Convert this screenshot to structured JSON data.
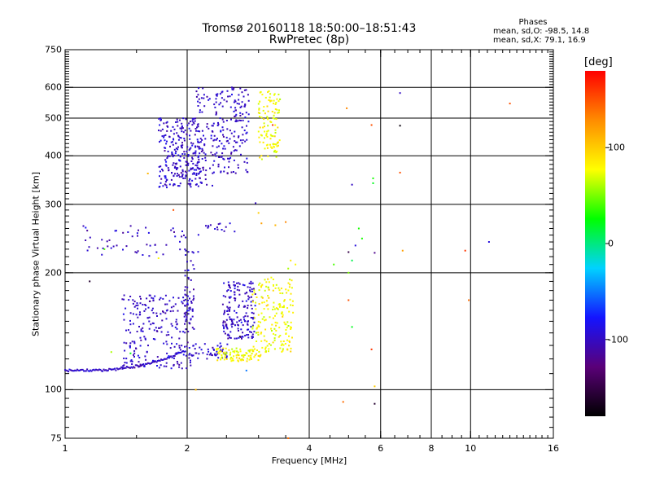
{
  "chart_data": {
    "type": "scatter",
    "title": "Tromsø 20160118 18:50:00–18:51:43",
    "subtitle": "RwPretec (8p)",
    "xlabel": "Frequency [MHz]",
    "ylabel": "Stationary phase Virtual Height [km]",
    "x_scale": "log",
    "y_scale": "log",
    "xlim": [
      1,
      16
    ],
    "ylim": [
      75,
      750
    ],
    "x_ticks": [
      1,
      2,
      4,
      6,
      8,
      10,
      16
    ],
    "x_tick_labels": [
      "1",
      "2",
      "4",
      "6",
      "8",
      "10",
      "16"
    ],
    "x_gridlines": [
      2,
      4,
      6,
      8,
      10
    ],
    "y_ticks": [
      75,
      100,
      200,
      300,
      400,
      500,
      600,
      750
    ],
    "y_tick_labels": [
      "75",
      "100",
      "200",
      "300",
      "400",
      "500",
      "600",
      "750"
    ],
    "y_gridlines": [
      100,
      200,
      300,
      400,
      500,
      600
    ],
    "grid": true,
    "colorbar": {
      "label": "[deg]",
      "range": [
        -180,
        180
      ],
      "ticks": [
        -100,
        0,
        100
      ],
      "tick_labels": [
        "-100",
        "0",
        "100"
      ],
      "colors": [
        "#000000",
        "#5a0078",
        "#1414ff",
        "#00d2ff",
        "#00ff00",
        "#ffff00",
        "#ff8c00",
        "#ff0000"
      ]
    },
    "stats": {
      "heading": "Phases",
      "line_o": "mean, sd,O: -98.5, 14.8",
      "line_x": "mean, sd,X:  79.1, 16.9"
    },
    "series": [
      {
        "mode": "O",
        "phase_mean": -98.5,
        "phase_sd": 14.8,
        "clusters": [
          {
            "fx": [
              1.0,
              1.98
            ],
            "h": [
              112,
              126
            ],
            "n": 110,
            "trace": true
          },
          {
            "fx": [
              1.38,
              2.05
            ],
            "h": [
              113,
              175
            ],
            "n": 230
          },
          {
            "fx": [
              1.97,
              2.08
            ],
            "h": [
              140,
              230
            ],
            "n": 50
          },
          {
            "fx": [
              2.02,
              2.55
            ],
            "h": [
              120,
              132
            ],
            "n": 50
          },
          {
            "fx": [
              2.45,
              2.95
            ],
            "h": [
              135,
              190
            ],
            "n": 170
          },
          {
            "fx": [
              1.08,
              2.15
            ],
            "h": [
              220,
              265
            ],
            "n": 55
          },
          {
            "fx": [
              2.2,
              2.65
            ],
            "h": [
              255,
              270
            ],
            "n": 15
          },
          {
            "fx": [
              1.7,
              2.15
            ],
            "h": [
              330,
              500
            ],
            "n": 250
          },
          {
            "fx": [
              2.1,
              2.35
            ],
            "h": [
              335,
              600
            ],
            "n": 90
          },
          {
            "fx": [
              2.35,
              2.85
            ],
            "h": [
              360,
              600
            ],
            "n": 160
          }
        ]
      },
      {
        "mode": "X",
        "phase_mean": 79.1,
        "phase_sd": 16.9,
        "clusters": [
          {
            "fx": [
              2.35,
              3.05
            ],
            "h": [
              118,
              128
            ],
            "n": 90
          },
          {
            "fx": [
              2.9,
              3.65
            ],
            "h": [
              125,
              195
            ],
            "n": 180
          },
          {
            "fx": [
              3.0,
              3.4
            ],
            "h": [
              390,
              590
            ],
            "n": 110
          }
        ]
      }
    ],
    "outliers": [
      [
        4.95,
        530,
        130
      ],
      [
        5.7,
        480,
        150
      ],
      [
        6.7,
        580,
        -100
      ],
      [
        6.7,
        478,
        -175
      ],
      [
        6.7,
        362,
        150
      ],
      [
        5.75,
        350,
        30
      ],
      [
        5.75,
        340,
        20
      ],
      [
        5.1,
        337,
        -100
      ],
      [
        5.3,
        260,
        30
      ],
      [
        5.4,
        245,
        30
      ],
      [
        5.2,
        235,
        -90
      ],
      [
        5.0,
        226,
        -150
      ],
      [
        5.1,
        215,
        10
      ],
      [
        4.6,
        210,
        40
      ],
      [
        5.8,
        225,
        -120
      ],
      [
        5.0,
        200,
        50
      ],
      [
        5.0,
        170,
        150
      ],
      [
        5.1,
        145,
        20
      ],
      [
        5.7,
        127,
        160
      ],
      [
        4.85,
        93,
        140
      ],
      [
        5.8,
        92,
        -160
      ],
      [
        5.8,
        102,
        100
      ],
      [
        6.8,
        228,
        120
      ],
      [
        9.7,
        228,
        160
      ],
      [
        9.9,
        170,
        140
      ],
      [
        11.1,
        240,
        -90
      ],
      [
        12.5,
        545,
        150
      ],
      [
        3.25,
        480,
        160
      ],
      [
        3.55,
        205,
        60
      ],
      [
        3.7,
        210,
        80
      ],
      [
        3.6,
        215,
        90
      ],
      [
        3.3,
        265,
        110
      ],
      [
        3.5,
        270,
        130
      ],
      [
        3.0,
        285,
        100
      ],
      [
        3.05,
        268,
        120
      ],
      [
        2.95,
        302,
        -100
      ],
      [
        1.85,
        290,
        150
      ],
      [
        1.7,
        218,
        80
      ],
      [
        1.25,
        230,
        40
      ],
      [
        1.6,
        360,
        110
      ],
      [
        1.15,
        190,
        -160
      ],
      [
        2.1,
        100,
        110
      ],
      [
        2.7,
        137,
        -160
      ],
      [
        3.55,
        75,
        140
      ],
      [
        1.3,
        125,
        60
      ],
      [
        1.45,
        124,
        20
      ],
      [
        2.8,
        112,
        -50
      ]
    ]
  }
}
